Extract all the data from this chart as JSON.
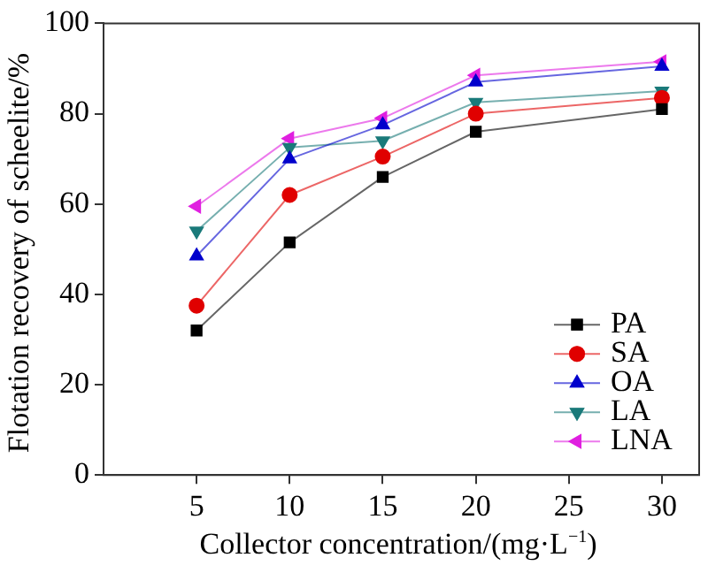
{
  "chart_data": {
    "type": "line",
    "xlabel": "Collector concentration/(mg·L$^{−1}$)",
    "ylabel": "Flotation recovery of scheelite/%",
    "x": [
      5,
      10,
      15,
      20,
      30
    ],
    "xlim": [
      0,
      32
    ],
    "xticks": [
      5,
      10,
      15,
      20,
      25,
      30
    ],
    "ylim": [
      0,
      100
    ],
    "yticks": [
      0,
      20,
      40,
      60,
      80,
      100
    ],
    "grid": false,
    "legend": "bottom right",
    "line_style": "solid",
    "series": [
      {
        "name": "PA",
        "color": "#000000",
        "marker": "square",
        "values": [
          32,
          51.5,
          66,
          76,
          81
        ]
      },
      {
        "name": "SA",
        "color": "#e00000",
        "marker": "circle",
        "values": [
          37.5,
          62,
          70.5,
          80,
          83.5
        ]
      },
      {
        "name": "OA",
        "color": "#0000cc",
        "marker": "triangle",
        "values": [
          48.5,
          70,
          77.5,
          87,
          90.5
        ]
      },
      {
        "name": "LA",
        "color": "#1a7a7a",
        "marker": "triangle-down",
        "values": [
          54,
          72.5,
          74,
          82.5,
          85
        ]
      },
      {
        "name": "LNA",
        "color": "#e020e0",
        "marker": "triangle-left",
        "values": [
          59.5,
          74.5,
          79,
          88.5,
          91.5
        ]
      }
    ]
  }
}
